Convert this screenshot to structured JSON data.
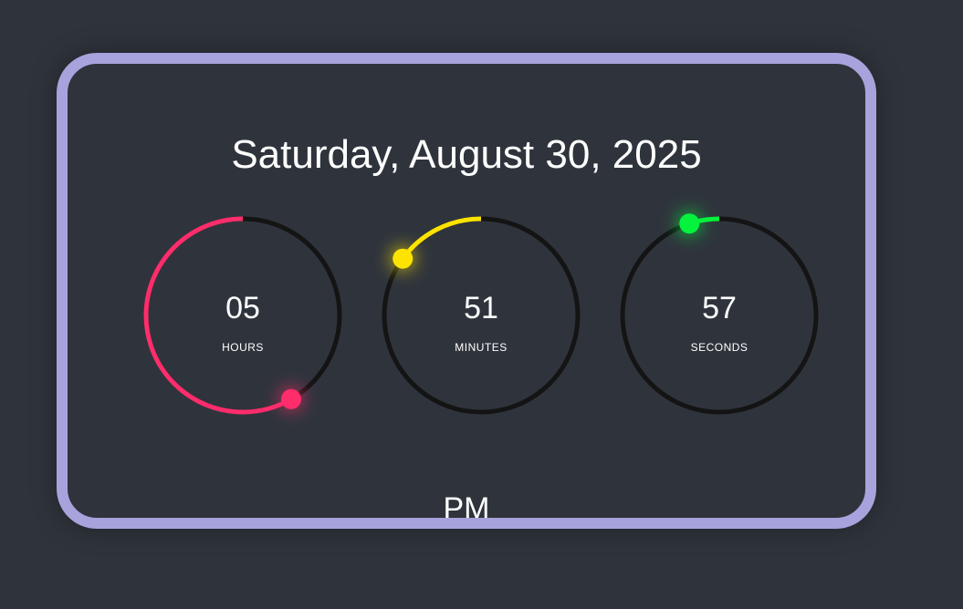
{
  "date_text": "Saturday, August 30, 2025",
  "period": "PM",
  "dials": [
    {
      "id": "hours",
      "value": "05",
      "label": "HOURS",
      "progress": 0.4167,
      "color": "#ff2d6c"
    },
    {
      "id": "minutes",
      "value": "51",
      "label": "MINUTES",
      "progress": 0.85,
      "color": "#ffe300"
    },
    {
      "id": "seconds",
      "value": "57",
      "label": "SECONDS",
      "progress": 0.95,
      "color": "#05f23d"
    }
  ],
  "track_color": "#141414",
  "frame_color": "#a8a3dc"
}
